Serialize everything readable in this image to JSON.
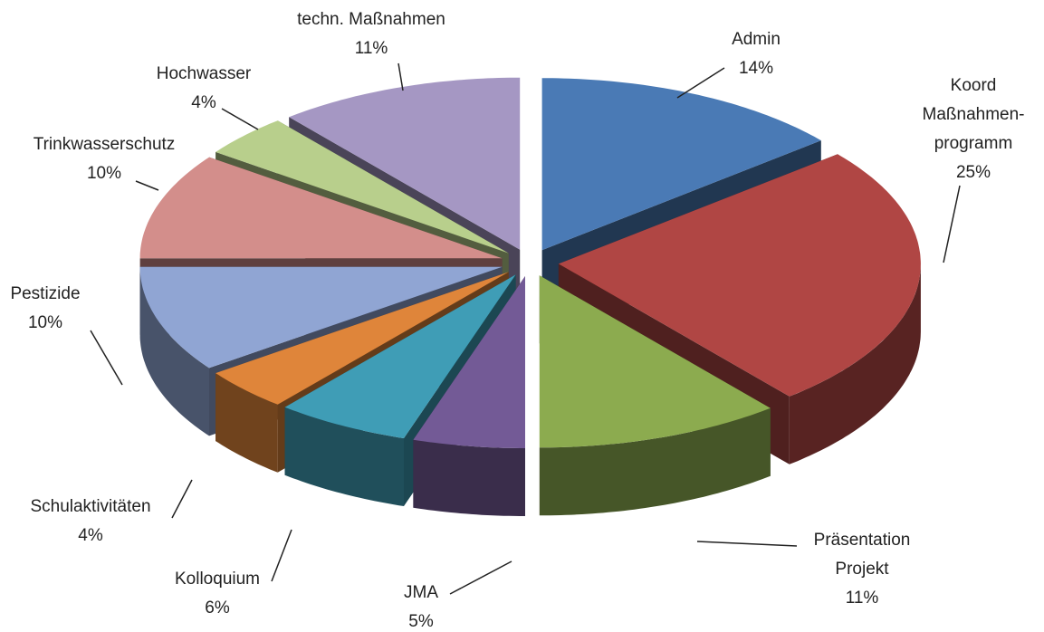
{
  "chart_data": {
    "type": "pie",
    "categories": [
      "Admin",
      "Koord\nMaßnahmen-\nprogramm",
      "Präsentation\nProjekt",
      "JMA",
      "Kolloquium",
      "Schulaktivitäten",
      "Pestizide",
      "Trinkwasserschutz",
      "Hochwasser",
      "techn. Maßnahmen"
    ],
    "values": [
      14,
      25,
      11,
      5,
      6,
      4,
      10,
      10,
      4,
      11
    ],
    "value_labels": [
      "14%",
      "25%",
      "11%",
      "5%",
      "6%",
      "4%",
      "10%",
      "10%",
      "4%",
      "11%"
    ],
    "colors": [
      "#4a7ab5",
      "#b04644",
      "#8cab4f",
      "#735a96",
      "#3f9db6",
      "#df853a",
      "#90a5d3",
      "#d38e8b",
      "#b8cf8c",
      "#a597c3"
    ]
  }
}
